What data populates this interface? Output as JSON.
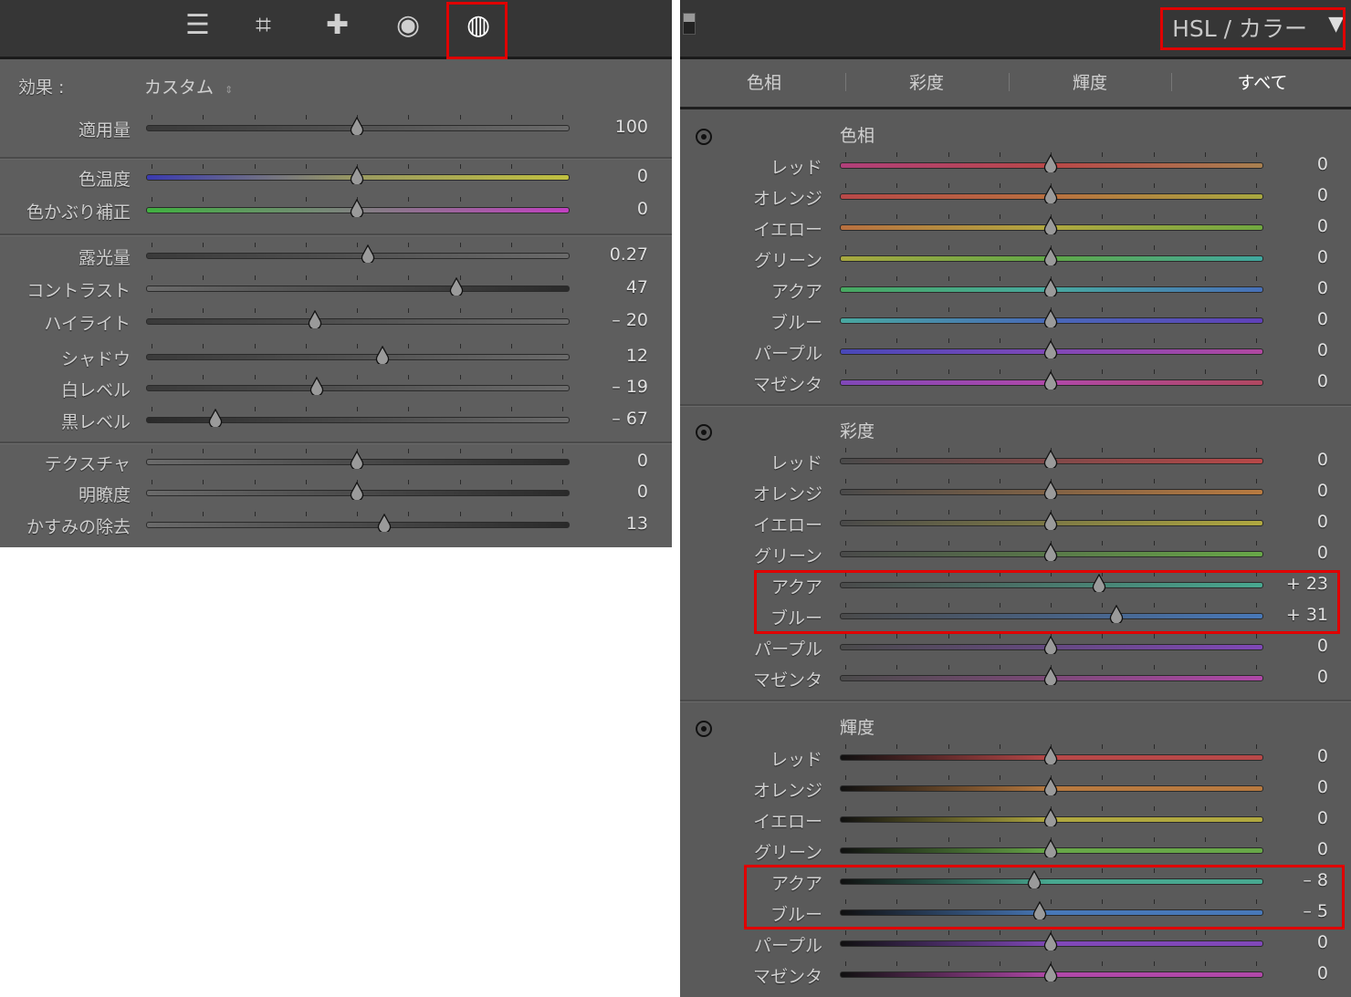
{
  "left_panel": {
    "tools": [
      {
        "icon": "sliders-icon",
        "glyph": "☰"
      },
      {
        "icon": "crop-rotate-icon",
        "glyph": "⌗"
      },
      {
        "icon": "healing-bandage-icon",
        "glyph": "✚"
      },
      {
        "icon": "red-eye-icon",
        "glyph": "◉"
      },
      {
        "icon": "radial-pattern-icon",
        "glyph": "◍",
        "selected": true
      }
    ],
    "effect_label": "効果 :",
    "effect_value": "カスタム",
    "groups": [
      [
        {
          "label": "適用量",
          "value": 100,
          "min": 0,
          "max": 200,
          "display": "100",
          "track": [
            "#3a3a3a",
            "#6a6a6a"
          ]
        }
      ],
      [
        {
          "label": "色温度",
          "value": 0,
          "min": -100,
          "max": 100,
          "display": "0",
          "track": [
            "#3a3ab0",
            "#9a9a60",
            "#c0c040"
          ]
        },
        {
          "label": "色かぶり補正",
          "value": 0,
          "min": -100,
          "max": 100,
          "display": "0",
          "track": [
            "#40b040",
            "#808080",
            "#c040c0"
          ]
        }
      ],
      [
        {
          "label": "露光量",
          "value": 0.27,
          "min": -5,
          "max": 5,
          "display": "0.27",
          "track": [
            "#3a3a3a",
            "#6a6a6a"
          ]
        },
        {
          "label": "コントラスト",
          "value": 47,
          "min": -100,
          "max": 100,
          "display": "47",
          "track": [
            "#6a6a6a",
            "#2a2a2a"
          ]
        },
        {
          "label": "ハイライト",
          "value": -20,
          "min": -100,
          "max": 100,
          "display": "– 20",
          "track": [
            "#3a3a3a",
            "#6a6a6a"
          ]
        },
        {
          "label": "シャドウ",
          "value": 12,
          "min": -100,
          "max": 100,
          "display": "12",
          "track": [
            "#3a3a3a",
            "#6a6a6a"
          ]
        },
        {
          "label": "白レベル",
          "value": -19,
          "min": -100,
          "max": 100,
          "display": "– 19",
          "track": [
            "#3a3a3a",
            "#6a6a6a"
          ]
        },
        {
          "label": "黒レベル",
          "value": -67,
          "min": -100,
          "max": 100,
          "display": "– 67",
          "track": [
            "#2a2a2a",
            "#6a6a6a"
          ]
        }
      ],
      [
        {
          "label": "テクスチャ",
          "value": 0,
          "min": -100,
          "max": 100,
          "display": "0",
          "track": [
            "#6a6a6a",
            "#2a2a2a"
          ]
        },
        {
          "label": "明瞭度",
          "value": 0,
          "min": -100,
          "max": 100,
          "display": "0",
          "track": [
            "#6a6a6a",
            "#2a2a2a"
          ]
        },
        {
          "label": "かすみの除去",
          "value": 13,
          "min": -100,
          "max": 100,
          "display": "13",
          "track": [
            "#6a6a6a",
            "#2a2a2a"
          ]
        }
      ]
    ]
  },
  "right_panel": {
    "title": "HSL / カラー",
    "tabs": [
      "色相",
      "彩度",
      "輝度",
      "すべて"
    ],
    "active_tab": "すべて",
    "colors": {
      "red": "#b84848",
      "orange": "#b87a40",
      "yellow": "#b0a840",
      "green": "#68a848",
      "aqua": "#48a890",
      "blue": "#4878b8",
      "purple": "#8048b8",
      "magenta": "#b048a8"
    },
    "sections": [
      {
        "title": "色相",
        "mode": "hue",
        "rows": [
          {
            "label": "レッド",
            "key": "red",
            "value": 0,
            "display": "0"
          },
          {
            "label": "オレンジ",
            "key": "orange",
            "value": 0,
            "display": "0"
          },
          {
            "label": "イエロー",
            "key": "yellow",
            "value": 0,
            "display": "0"
          },
          {
            "label": "グリーン",
            "key": "green",
            "value": 0,
            "display": "0"
          },
          {
            "label": "アクア",
            "key": "aqua",
            "value": 0,
            "display": "0"
          },
          {
            "label": "ブルー",
            "key": "blue",
            "value": 0,
            "display": "0"
          },
          {
            "label": "パープル",
            "key": "purple",
            "value": 0,
            "display": "0"
          },
          {
            "label": "マゼンタ",
            "key": "magenta",
            "value": 0,
            "display": "0"
          }
        ]
      },
      {
        "title": "彩度",
        "mode": "sat",
        "rows": [
          {
            "label": "レッド",
            "key": "red",
            "value": 0,
            "display": "0"
          },
          {
            "label": "オレンジ",
            "key": "orange",
            "value": 0,
            "display": "0"
          },
          {
            "label": "イエロー",
            "key": "yellow",
            "value": 0,
            "display": "0"
          },
          {
            "label": "グリーン",
            "key": "green",
            "value": 0,
            "display": "0"
          },
          {
            "label": "アクア",
            "key": "aqua",
            "value": 23,
            "display": "+ 23",
            "highlight": true
          },
          {
            "label": "ブルー",
            "key": "blue",
            "value": 31,
            "display": "+ 31",
            "highlight": true
          },
          {
            "label": "パープル",
            "key": "purple",
            "value": 0,
            "display": "0"
          },
          {
            "label": "マゼンタ",
            "key": "magenta",
            "value": 0,
            "display": "0"
          }
        ]
      },
      {
        "title": "輝度",
        "mode": "lum",
        "rows": [
          {
            "label": "レッド",
            "key": "red",
            "value": 0,
            "display": "0"
          },
          {
            "label": "オレンジ",
            "key": "orange",
            "value": 0,
            "display": "0"
          },
          {
            "label": "イエロー",
            "key": "yellow",
            "value": 0,
            "display": "0"
          },
          {
            "label": "グリーン",
            "key": "green",
            "value": 0,
            "display": "0"
          },
          {
            "label": "アクア",
            "key": "aqua",
            "value": -8,
            "display": "– 8",
            "highlight": true
          },
          {
            "label": "ブルー",
            "key": "blue",
            "value": -5,
            "display": "– 5",
            "highlight": true
          },
          {
            "label": "パープル",
            "key": "purple",
            "value": 0,
            "display": "0"
          },
          {
            "label": "マゼンタ",
            "key": "magenta",
            "value": 0,
            "display": "0"
          }
        ]
      }
    ]
  },
  "highlight_color": "#e00000"
}
